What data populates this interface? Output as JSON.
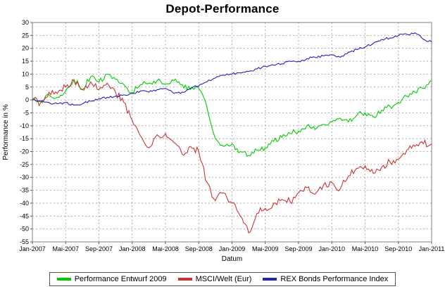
{
  "chart_data": {
    "type": "line",
    "title": "Depot-Performance",
    "xlabel": "Datum",
    "ylabel": "Performance in %",
    "ylim": [
      -55,
      30
    ],
    "y_tick_step": 5,
    "grid": true,
    "legend_position": "bottom",
    "x_tick_labels": [
      "Jan-2007",
      "Mai-2007",
      "Sep-2007",
      "Jan-2008",
      "Mai-2008",
      "Sep-2008",
      "Jan-2009",
      "Mai-2009",
      "Sep-2009",
      "Jan-2010",
      "Mai-2010",
      "Sep-2010",
      "Jan-2011"
    ],
    "x_tick_every": 4,
    "x_unit": "months, Jan-2007 to Jan-2011, one value per month",
    "series": [
      {
        "name": "Performance Entwurf 2009",
        "color": "#00cc00",
        "values": [
          0,
          -0.5,
          2,
          1,
          3.5,
          8,
          4,
          9,
          7,
          10,
          8,
          6,
          3,
          6,
          6.5,
          7.5,
          6,
          7.5,
          6,
          4,
          4.5,
          -3,
          -15,
          -18,
          -17,
          -20,
          -21.5,
          -19.5,
          -18.5,
          -16,
          -14.5,
          -13,
          -12,
          -10,
          -11.5,
          -9.5,
          -8.5,
          -7,
          -8.5,
          -6,
          -5,
          -6.5,
          -4,
          -2.5,
          -1,
          1.5,
          3,
          4.5,
          7.5
        ]
      },
      {
        "name": "MSCI/Welt (Eur)",
        "color": "#cc3333",
        "values": [
          0,
          -1,
          3,
          2.5,
          5,
          7.5,
          4,
          7,
          4,
          6.5,
          3,
          -1,
          -8,
          -14,
          -18.5,
          -13.5,
          -13,
          -16.5,
          -21,
          -18,
          -20,
          -32,
          -39,
          -36,
          -40,
          -45,
          -51.5,
          -44,
          -42,
          -40,
          -38.5,
          -39.5,
          -36,
          -34,
          -36.5,
          -33,
          -32,
          -34.5,
          -29.5,
          -26.5,
          -25.5,
          -28.5,
          -26,
          -24,
          -23,
          -19.5,
          -18,
          -17,
          -17
        ]
      },
      {
        "name": "REX Bonds Performance Index",
        "color": "#2222bb",
        "values": [
          0,
          -0.5,
          -1,
          -1.5,
          -1,
          -2,
          -1.5,
          -0.5,
          0.5,
          1,
          1.5,
          2,
          2.5,
          3.5,
          3,
          4,
          4.5,
          2.5,
          3,
          4.5,
          5.5,
          7,
          8.5,
          9.5,
          10,
          10.5,
          11,
          12,
          13,
          13.5,
          14,
          15,
          15,
          16,
          16.5,
          17,
          17.5,
          16.5,
          18.5,
          19.5,
          20.5,
          22,
          23.5,
          24,
          25,
          25.5,
          26,
          23.5,
          22.5
        ]
      }
    ]
  }
}
